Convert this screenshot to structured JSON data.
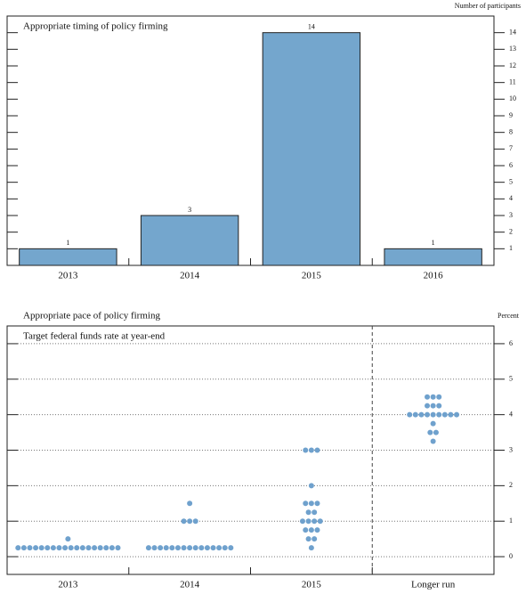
{
  "chart_data": [
    {
      "type": "bar",
      "title": "Appropriate timing of policy firming",
      "y_axis_label": "Number of participants",
      "categories": [
        "2013",
        "2014",
        "2015",
        "2016"
      ],
      "values": [
        1,
        3,
        14,
        1
      ],
      "color": "#74a6cd",
      "ylim": [
        0,
        15
      ],
      "yticks": [
        1,
        2,
        3,
        4,
        5,
        6,
        7,
        8,
        9,
        10,
        11,
        12,
        13,
        14
      ],
      "grid": false
    },
    {
      "type": "dot",
      "title": "Appropriate pace of policy firming",
      "subtitle": "Target federal funds rate at year-end",
      "y_axis_label": "Percent",
      "categories": [
        "2013",
        "2014",
        "2015",
        "Longer run"
      ],
      "values": [
        [
          0.25,
          0.25,
          0.25,
          0.25,
          0.25,
          0.25,
          0.25,
          0.25,
          0.25,
          0.25,
          0.25,
          0.25,
          0.25,
          0.25,
          0.25,
          0.25,
          0.25,
          0.25,
          0.5
        ],
        [
          0.25,
          0.25,
          0.25,
          0.25,
          0.25,
          0.25,
          0.25,
          0.25,
          0.25,
          0.25,
          0.25,
          0.25,
          0.25,
          0.25,
          0.25,
          1,
          1,
          1,
          1.5
        ],
        [
          0.25,
          0.5,
          0.5,
          0.75,
          0.75,
          0.75,
          1,
          1,
          1,
          1,
          1.25,
          1.25,
          1.5,
          1.5,
          1.5,
          2,
          3,
          3,
          3
        ],
        [
          3.25,
          3.5,
          3.5,
          3.75,
          4,
          4,
          4,
          4,
          4,
          4,
          4,
          4,
          4,
          4.25,
          4.25,
          4.25,
          4.5,
          4.5,
          4.5
        ]
      ],
      "color": "#6fa1cd",
      "ylim": [
        -0.5,
        6.5
      ],
      "yticks": [
        0,
        1,
        2,
        3,
        4,
        5,
        6
      ],
      "grid": true
    }
  ]
}
